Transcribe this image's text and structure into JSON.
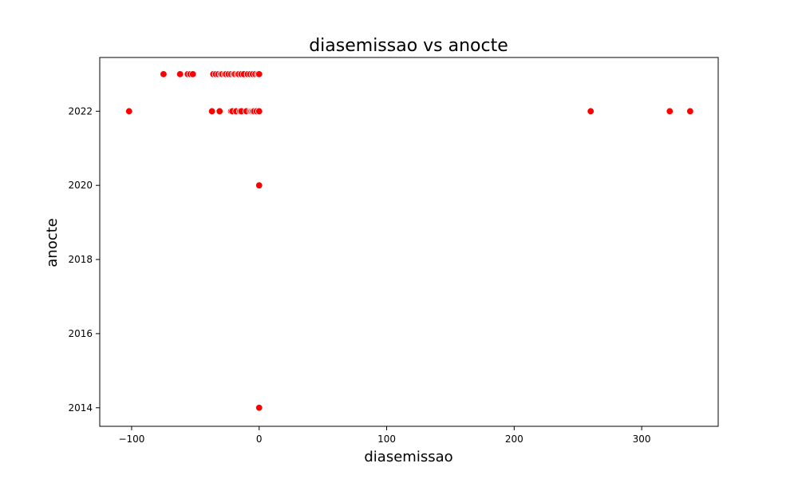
{
  "chart_data": {
    "type": "scatter",
    "title": "diasemissao vs anocte",
    "xlabel": "diasemissao",
    "ylabel": "anocte",
    "xlim": [
      -125,
      360
    ],
    "ylim": [
      2013.5,
      2023.45
    ],
    "x_ticks": [
      -100,
      0,
      100,
      200,
      300
    ],
    "y_ticks": [
      2014,
      2016,
      2018,
      2020,
      2022
    ],
    "x_tick_labels": [
      "−100",
      "0",
      "100",
      "200",
      "300"
    ],
    "y_tick_labels": [
      "2014",
      "2016",
      "2018",
      "2020",
      "2022"
    ],
    "grid": false,
    "marker_color": "#ff0000",
    "points": [
      {
        "x": -75,
        "y": 2023
      },
      {
        "x": -62,
        "y": 2023
      },
      {
        "x": -56,
        "y": 2023
      },
      {
        "x": -54,
        "y": 2023
      },
      {
        "x": -52,
        "y": 2023
      },
      {
        "x": -36,
        "y": 2023
      },
      {
        "x": -34,
        "y": 2023
      },
      {
        "x": -32,
        "y": 2023
      },
      {
        "x": -30,
        "y": 2023
      },
      {
        "x": -29,
        "y": 2023
      },
      {
        "x": -27,
        "y": 2023
      },
      {
        "x": -26,
        "y": 2023
      },
      {
        "x": -24,
        "y": 2023
      },
      {
        "x": -22,
        "y": 2023
      },
      {
        "x": -20,
        "y": 2023
      },
      {
        "x": -19,
        "y": 2023
      },
      {
        "x": -17,
        "y": 2023
      },
      {
        "x": -16,
        "y": 2023
      },
      {
        "x": -14,
        "y": 2023
      },
      {
        "x": -12,
        "y": 2023
      },
      {
        "x": -9,
        "y": 2023
      },
      {
        "x": -7,
        "y": 2023
      },
      {
        "x": -5,
        "y": 2023
      },
      {
        "x": -3,
        "y": 2023
      },
      {
        "x": -1,
        "y": 2023
      },
      {
        "x": 0,
        "y": 2023
      },
      {
        "x": -102,
        "y": 2022
      },
      {
        "x": -37,
        "y": 2022
      },
      {
        "x": -31,
        "y": 2022
      },
      {
        "x": -22,
        "y": 2022
      },
      {
        "x": -21,
        "y": 2022
      },
      {
        "x": -18,
        "y": 2022
      },
      {
        "x": -15,
        "y": 2022
      },
      {
        "x": -14,
        "y": 2022
      },
      {
        "x": -10,
        "y": 2022
      },
      {
        "x": -7,
        "y": 2022
      },
      {
        "x": -6,
        "y": 2022
      },
      {
        "x": -5,
        "y": 2022
      },
      {
        "x": -4,
        "y": 2022
      },
      {
        "x": -2,
        "y": 2022
      },
      {
        "x": 0,
        "y": 2022
      },
      {
        "x": 260,
        "y": 2022
      },
      {
        "x": 322,
        "y": 2022
      },
      {
        "x": 338,
        "y": 2022
      },
      {
        "x": 0,
        "y": 2020
      },
      {
        "x": 0,
        "y": 2014
      }
    ]
  }
}
